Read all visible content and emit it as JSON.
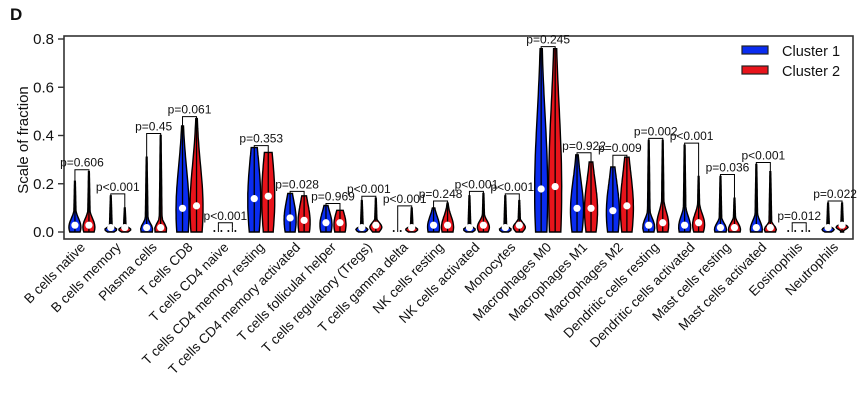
{
  "panel_label": "D",
  "chart_data": {
    "type": "violin",
    "title": "",
    "xlabel": "",
    "ylabel": "Scale of fraction",
    "ylim": [
      0,
      0.8
    ],
    "yticks": [
      "0.0",
      "0.2",
      "0.4",
      "0.6",
      "0.8"
    ],
    "ytick_values": [
      0,
      0.2,
      0.4,
      0.6,
      0.8
    ],
    "grid": false,
    "legend_position": "top-right",
    "series": [
      {
        "name": "Cluster 1",
        "color": "#0a2cf0"
      },
      {
        "name": "Cluster 2",
        "color": "#e8141b"
      }
    ],
    "categories": [
      "B cells native",
      "B cells memory",
      "Plasma cells",
      "T cells CD8",
      "T cells CD4 naive",
      "T cells CD4 memory resting",
      "T cells CD4 memory activated",
      "T cells follicular helper",
      "T cells regulatory (Tregs)",
      "T cells gamma delta",
      "NK cells resting",
      "NK cells activated",
      "Monocytes",
      "Macrophages M0",
      "Macrophages M1",
      "Macrophages M2",
      "Dendritic cells resting",
      "Dendritic cells activated",
      "Mast cells resting",
      "Mast cells activated",
      "Eosinophils",
      "Neutrophils"
    ],
    "p_values": [
      "p=0.606",
      "p<0.001",
      "p=0.45",
      "p=0.061",
      "p<0.001",
      "p=0.353",
      "p=0.028",
      "p=0.969",
      "p<0.001",
      "p<0.001",
      "p=0.248",
      "p<0.001",
      "p<0.001",
      "p=0.245",
      "p=0.922",
      "p=0.009",
      "p=0.002",
      "p<0.001",
      "p=0.036",
      "p<0.001",
      "p=0.012",
      "p=0.022"
    ],
    "cluster1": {
      "max": [
        0.21,
        0.15,
        0.31,
        0.44,
        0.03,
        0.35,
        0.16,
        0.11,
        0.13,
        0.05,
        0.1,
        0.15,
        0.15,
        0.76,
        0.32,
        0.27,
        0.38,
        0.36,
        0.23,
        0.28,
        0.03,
        0.12
      ],
      "median": [
        0.02,
        0.01,
        0.01,
        0.09,
        0.01,
        0.13,
        0.05,
        0.03,
        0.01,
        0.01,
        0.02,
        0.01,
        0.01,
        0.17,
        0.09,
        0.08,
        0.02,
        0.02,
        0.01,
        0.01,
        0.005,
        0.01
      ],
      "q3": [
        0.04,
        0.01,
        0.03,
        0.2,
        0.01,
        0.2,
        0.09,
        0.06,
        0.01,
        0.01,
        0.05,
        0.01,
        0.01,
        0.35,
        0.14,
        0.14,
        0.04,
        0.05,
        0.03,
        0.04,
        0.01,
        0.01
      ]
    },
    "cluster2": {
      "max": [
        0.25,
        0.1,
        0.4,
        0.47,
        0.02,
        0.33,
        0.15,
        0.09,
        0.14,
        0.1,
        0.12,
        0.16,
        0.13,
        0.76,
        0.29,
        0.31,
        0.38,
        0.23,
        0.14,
        0.25,
        0.03,
        0.12
      ],
      "median": [
        0.02,
        0.01,
        0.01,
        0.1,
        0.01,
        0.14,
        0.04,
        0.03,
        0.02,
        0.01,
        0.02,
        0.02,
        0.02,
        0.18,
        0.09,
        0.1,
        0.03,
        0.03,
        0.01,
        0.01,
        0.005,
        0.02
      ],
      "q3": [
        0.04,
        0.01,
        0.03,
        0.2,
        0.01,
        0.21,
        0.09,
        0.06,
        0.02,
        0.01,
        0.05,
        0.03,
        0.02,
        0.38,
        0.14,
        0.16,
        0.06,
        0.05,
        0.03,
        0.02,
        0.01,
        0.01
      ]
    }
  }
}
